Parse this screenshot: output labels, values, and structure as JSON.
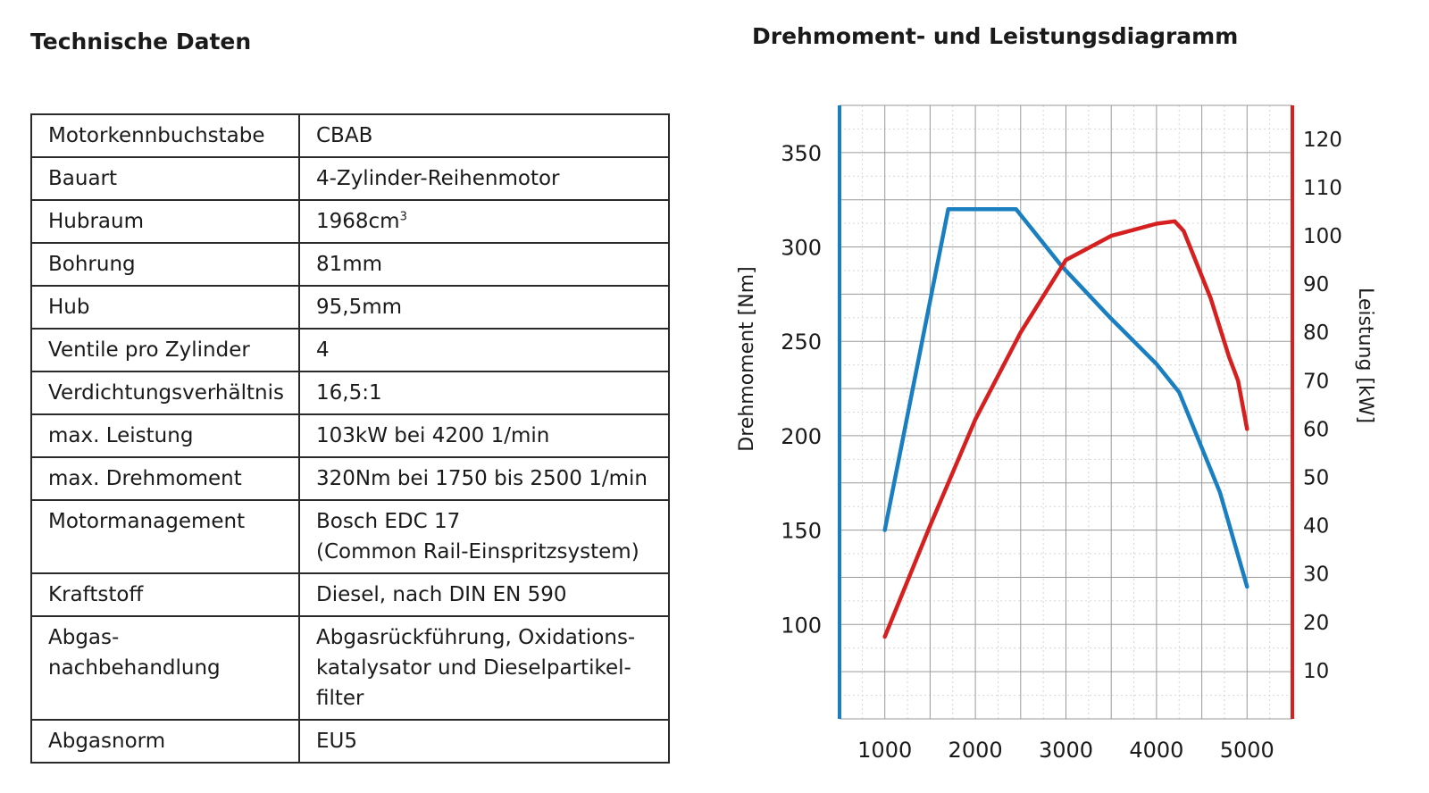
{
  "spec_table": {
    "title": "Technische Daten",
    "rows": [
      {
        "label": "Motorkennbuchstabe",
        "value": "CBAB"
      },
      {
        "label": "Bauart",
        "value": "4-Zylinder-Reihenmotor"
      },
      {
        "label": "Hubraum",
        "value": "1968cm",
        "sup": "3"
      },
      {
        "label": "Bohrung",
        "value": "81mm"
      },
      {
        "label": "Hub",
        "value": "95,5mm"
      },
      {
        "label": "Ventile pro Zylinder",
        "value": "4"
      },
      {
        "label": "Verdichtungsverhältnis",
        "value": "16,5:1"
      },
      {
        "label": "max. Leistung",
        "value": "103kW bei 4200 1/min"
      },
      {
        "label": "max. Drehmoment",
        "value": "320Nm bei 1750 bis 2500 1/min"
      },
      {
        "label": "Motormanagement",
        "value": [
          "Bosch EDC 17",
          "(Common Rail-Einspritzsystem)"
        ]
      },
      {
        "label": "Kraftstoff",
        "value": "Diesel, nach DIN EN 590"
      },
      {
        "label": [
          "Abgas-",
          "nachbehandlung"
        ],
        "value": [
          "Abgasrückführung, Oxidations-",
          "katalysator und Dieselpartikel-",
          "filter"
        ]
      },
      {
        "label": "Abgasnorm",
        "value": "EU5"
      }
    ]
  },
  "chart_data": {
    "type": "line",
    "title": "Drehmoment- und Leistungsdiagramm",
    "xlabel": "",
    "x_ticks": [
      1000,
      2000,
      3000,
      4000,
      5000
    ],
    "xlim": [
      500,
      5500
    ],
    "grid": true,
    "left_axis": {
      "label": "Drehmoment [Nm]",
      "ylim": [
        50,
        375
      ],
      "ticks": [
        100,
        150,
        200,
        250,
        300,
        350
      ],
      "color": "#1a7fc1"
    },
    "right_axis": {
      "label": "Leistung [kW]",
      "ylim": [
        0,
        127
      ],
      "ticks": [
        10,
        20,
        30,
        40,
        50,
        60,
        70,
        80,
        90,
        100,
        110,
        120
      ],
      "color": "#d61f1f"
    },
    "series": [
      {
        "axis": "left",
        "color": "#1a7fc1",
        "x": [
          1000,
          1700,
          2450,
          2950,
          3500,
          4000,
          4250,
          4700,
          5000
        ],
        "y": [
          150,
          320,
          320,
          290,
          262,
          238,
          223,
          170,
          120
        ]
      },
      {
        "axis": "right",
        "color": "#d61f1f",
        "x": [
          1000,
          1500,
          2000,
          2500,
          3000,
          3500,
          4000,
          4200,
          4300,
          4600,
          4800,
          4900,
          5000
        ],
        "y": [
          17,
          40,
          62,
          80,
          95,
          100,
          102.5,
          103,
          101,
          87,
          75,
          70,
          60
        ]
      }
    ]
  }
}
